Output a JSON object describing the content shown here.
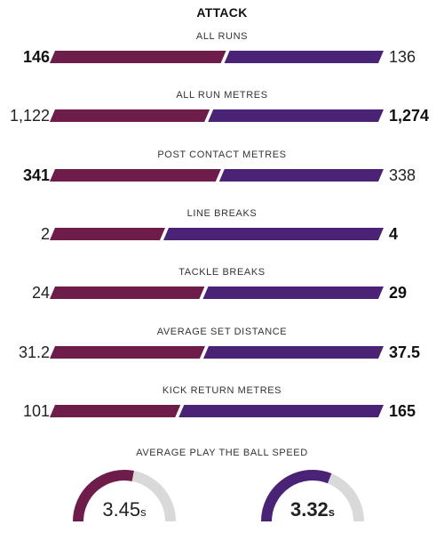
{
  "section_title": "ATTACK",
  "colors": {
    "home": "#6e1d4a",
    "away": "#4a2377",
    "gauge_track": "#d9d9d9"
  },
  "stats": [
    {
      "label": "ALL RUNS",
      "home": "146",
      "away": "136",
      "home_value": 146,
      "away_value": 136,
      "bold": "home"
    },
    {
      "label": "ALL RUN METRES",
      "home": "1,122",
      "away": "1,274",
      "home_value": 1122,
      "away_value": 1274,
      "bold": "away"
    },
    {
      "label": "POST CONTACT METRES",
      "home": "341",
      "away": "338",
      "home_value": 341,
      "away_value": 338,
      "bold": "home"
    },
    {
      "label": "LINE BREAKS",
      "home": "2",
      "away": "4",
      "home_value": 2,
      "away_value": 4,
      "bold": "away"
    },
    {
      "label": "TACKLE BREAKS",
      "home": "24",
      "away": "29",
      "home_value": 24,
      "away_value": 29,
      "bold": "away"
    },
    {
      "label": "AVERAGE SET DISTANCE",
      "home": "31.2",
      "away": "37.5",
      "home_value": 31.2,
      "away_value": 37.5,
      "bold": "away"
    },
    {
      "label": "KICK RETURN METRES",
      "home": "101",
      "away": "165",
      "home_value": 101,
      "away_value": 165,
      "bold": "away"
    }
  ],
  "play_the_ball": {
    "label": "AVERAGE PLAY THE BALL SPEED",
    "home": {
      "value": "3.45",
      "unit": "s",
      "fill": 0.56
    },
    "away": {
      "value": "3.32",
      "unit": "s",
      "fill": 0.62
    },
    "bold": "away"
  }
}
